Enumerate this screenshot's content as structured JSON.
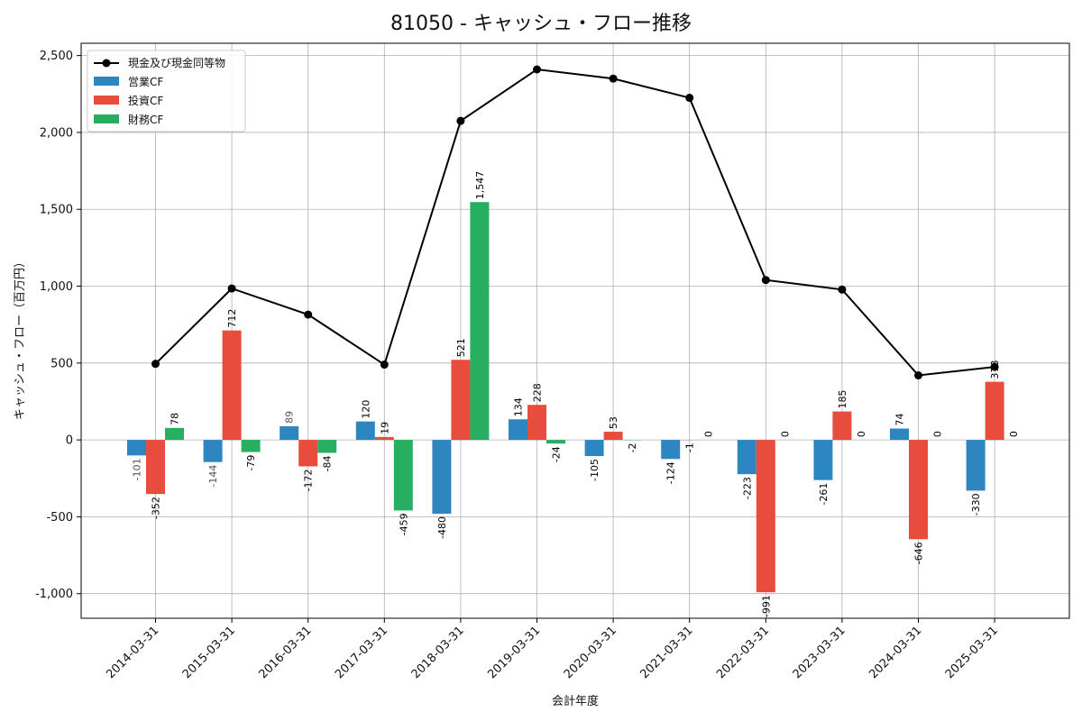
{
  "chart_data": {
    "type": "bar",
    "title": "81050 - キャッシュ・フロー推移",
    "xlabel": "会計年度",
    "ylabel": "キャッシュ・フロー（百万円）",
    "ylim": [
      -1160,
      2580
    ],
    "yticks": [
      -1000,
      -500,
      0,
      500,
      1000,
      1500,
      2000,
      2500
    ],
    "ytick_labels": [
      "-1,000",
      "-500",
      "0",
      "500",
      "1,000",
      "1,500",
      "2,000",
      "2,500"
    ],
    "grid": true,
    "legend_position": "top-left",
    "categories": [
      "2014-03-31",
      "2015-03-31",
      "2016-03-31",
      "2017-03-31",
      "2018-03-31",
      "2019-03-31",
      "2020-03-31",
      "2021-03-31",
      "2022-03-31",
      "2023-03-31",
      "2024-03-31",
      "2025-03-31"
    ],
    "line_series": {
      "name": "現金及び現金同等物",
      "color": "#000000",
      "values": [
        495,
        985,
        815,
        490,
        2075,
        2410,
        2350,
        2225,
        1040,
        978,
        420,
        475
      ]
    },
    "series": [
      {
        "name": "営業CF",
        "color": "#2e86c1",
        "values": [
          -101,
          -144,
          89,
          120,
          -480,
          134,
          -105,
          -124,
          -223,
          -261,
          74,
          -330
        ],
        "labels": [
          "-101",
          "-144",
          "89",
          "120",
          "-480",
          "134",
          "-105",
          "-124",
          "-223",
          "-261",
          "74",
          "-330"
        ]
      },
      {
        "name": "投資CF",
        "color": "#e74c3c",
        "values": [
          -352,
          712,
          -172,
          19,
          521,
          228,
          53,
          -1,
          -991,
          185,
          -646,
          378
        ],
        "labels": [
          "-352",
          "712",
          "-172",
          "19",
          "521",
          "228",
          "53",
          "-1",
          "-991",
          "185",
          "-646",
          "378"
        ]
      },
      {
        "name": "財務CF",
        "color": "#27ae60",
        "values": [
          78,
          -79,
          -84,
          -459,
          1547,
          -24,
          -2,
          0,
          0,
          0,
          0,
          0
        ],
        "labels": [
          "78",
          "-79",
          "-84",
          "-459",
          "1,547",
          "-24",
          "-2",
          "0",
          "0",
          "0",
          "0",
          "0"
        ]
      }
    ]
  }
}
